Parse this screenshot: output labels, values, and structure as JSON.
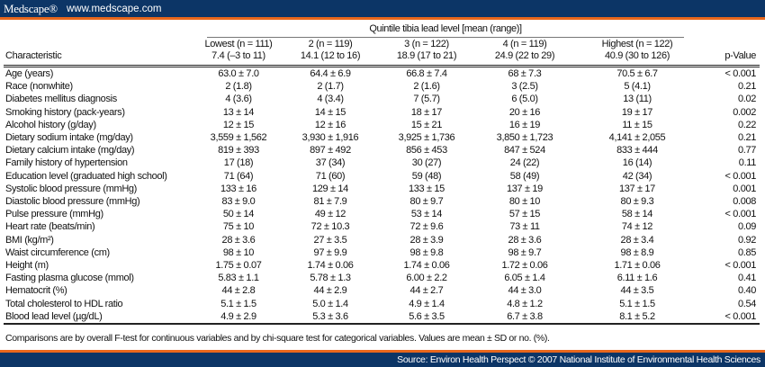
{
  "header": {
    "logo": "Medscape®",
    "url": "www.medscape.com"
  },
  "table": {
    "group_header": "Quintile tibia lead level [mean (range)]",
    "characteristic_header": "Characteristic",
    "pvalue_header": "p-Value",
    "columns": [
      {
        "line1": "Lowest (n = 111)",
        "line2": "7.4 (–3 to 11)"
      },
      {
        "line1": "2 (n = 119)",
        "line2": "14.1 (12 to 16)"
      },
      {
        "line1": "3 (n = 122)",
        "line2": "18.9 (17 to 21)"
      },
      {
        "line1": "4 (n = 119)",
        "line2": "24.9 (22 to 29)"
      },
      {
        "line1": "Highest (n = 122)",
        "line2": "40.9 (30 to 126)"
      }
    ],
    "rows": [
      {
        "label": "Age (years)",
        "v": [
          "63.0 ± 7.0",
          "64.4 ± 6.9",
          "66.8 ± 7.4",
          "68 ± 7.3",
          "70.5 ± 6.7"
        ],
        "p": "< 0.001"
      },
      {
        "label": "Race (nonwhite)",
        "v": [
          "2 (1.8)",
          "2 (1.7)",
          "2 (1.6)",
          "3 (2.5)",
          "5 (4.1)"
        ],
        "p": "0.21"
      },
      {
        "label": "Diabetes mellitus diagnosis",
        "v": [
          "4 (3.6)",
          "4 (3.4)",
          "7 (5.7)",
          "6 (5.0)",
          "13 (11)"
        ],
        "p": "0.02"
      },
      {
        "label": "Smoking history (pack-years)",
        "v": [
          "13 ± 14",
          "14 ± 15",
          "18 ± 17",
          "20 ± 16",
          "19 ± 17"
        ],
        "p": "0.002"
      },
      {
        "label": "Alcohol history (g/day)",
        "v": [
          "12 ± 15",
          "12 ± 16",
          "15 ± 21",
          "16 ± 19",
          "11 ± 15"
        ],
        "p": "0.22"
      },
      {
        "label": "Dietary sodium intake (mg/day)",
        "v": [
          "3,559 ± 1,562",
          "3,930 ± 1,916",
          "3,925 ± 1,736",
          "3,850 ± 1,723",
          "4,141 ± 2,055"
        ],
        "p": "0.21"
      },
      {
        "label": "Dietary calcium intake (mg/day)",
        "v": [
          "819 ± 393",
          "897 ± 492",
          "856 ± 453",
          "847 ± 524",
          "833 ± 444"
        ],
        "p": "0.77"
      },
      {
        "label": "Family history of hypertension",
        "v": [
          "17 (18)",
          "37 (34)",
          "30 (27)",
          "24 (22)",
          "16 (14)"
        ],
        "p": "0.11"
      },
      {
        "label": "Education level (graduated high school)",
        "v": [
          "71 (64)",
          "71 (60)",
          "59 (48)",
          "58 (49)",
          "42 (34)"
        ],
        "p": "< 0.001"
      },
      {
        "label": "Systolic blood pressure (mmHg)",
        "v": [
          "133 ± 16",
          "129 ± 14",
          "133 ± 15",
          "137 ± 19",
          "137 ± 17"
        ],
        "p": "0.001"
      },
      {
        "label": "Diastolic blood pressure (mmHg)",
        "v": [
          "83 ± 9.0",
          "81 ± 7.9",
          "80 ± 9.7",
          "80 ± 10",
          "80 ± 9.3"
        ],
        "p": "0.008"
      },
      {
        "label": "Pulse pressure (mmHg)",
        "v": [
          "50 ± 14",
          "49 ± 12",
          "53 ± 14",
          "57 ± 15",
          "58 ± 14"
        ],
        "p": "< 0.001"
      },
      {
        "label": "Heart rate (beats/min)",
        "v": [
          "75 ± 10",
          "72 ± 10.3",
          "72 ± 9.6",
          "73 ± 11",
          "74 ± 12"
        ],
        "p": "0.09"
      },
      {
        "label": "BMI (kg/m²)",
        "v": [
          "28 ± 3.6",
          "27 ± 3.5",
          "28 ± 3.9",
          "28 ± 3.6",
          "28 ± 3.4"
        ],
        "p": "0.92"
      },
      {
        "label": "Waist circumference (cm)",
        "v": [
          "98 ± 10",
          "97 ± 9.9",
          "98 ± 9.8",
          "98 ± 9.7",
          "98 ± 8.9"
        ],
        "p": "0.85"
      },
      {
        "label": "Height (m)",
        "v": [
          "1.75 ± 0.07",
          "1.74 ± 0.06",
          "1.74 ± 0.06",
          "1.72 ± 0.06",
          "1.71 ± 0.06"
        ],
        "p": "< 0.001"
      },
      {
        "label": "Fasting plasma glucose (mmol)",
        "v": [
          "5.83 ± 1.1",
          "5.78 ± 1.3",
          "6.00 ± 2.2",
          "6.05 ± 1.4",
          "6.11 ± 1.6"
        ],
        "p": "0.41"
      },
      {
        "label": "Hematocrit (%)",
        "v": [
          "44 ± 2.8",
          "44 ± 2.9",
          "44 ± 2.7",
          "44 ± 3.0",
          "44 ± 3.5"
        ],
        "p": "0.40"
      },
      {
        "label": "Total cholesterol to HDL ratio",
        "v": [
          "5.1 ± 1.5",
          "5.0 ± 1.4",
          "4.9 ± 1.4",
          "4.8 ± 1.2",
          "5.1 ± 1.5"
        ],
        "p": "0.54"
      },
      {
        "label": "Blood lead level (µg/dL)",
        "v": [
          "4.9 ± 2.9",
          "5.3 ± 3.6",
          "5.6 ± 3.5",
          "6.7 ± 3.8",
          "8.1 ± 5.2"
        ],
        "p": "< 0.001"
      }
    ]
  },
  "footnote": "Comparisons are by overall F-test for continuous variables and by chi-square test for categorical variables. Values are mean ± SD or no. (%).",
  "footer": {
    "source": "Source: Environ Health Perspect © 2007 National Institute of Environmental Health Sciences"
  }
}
